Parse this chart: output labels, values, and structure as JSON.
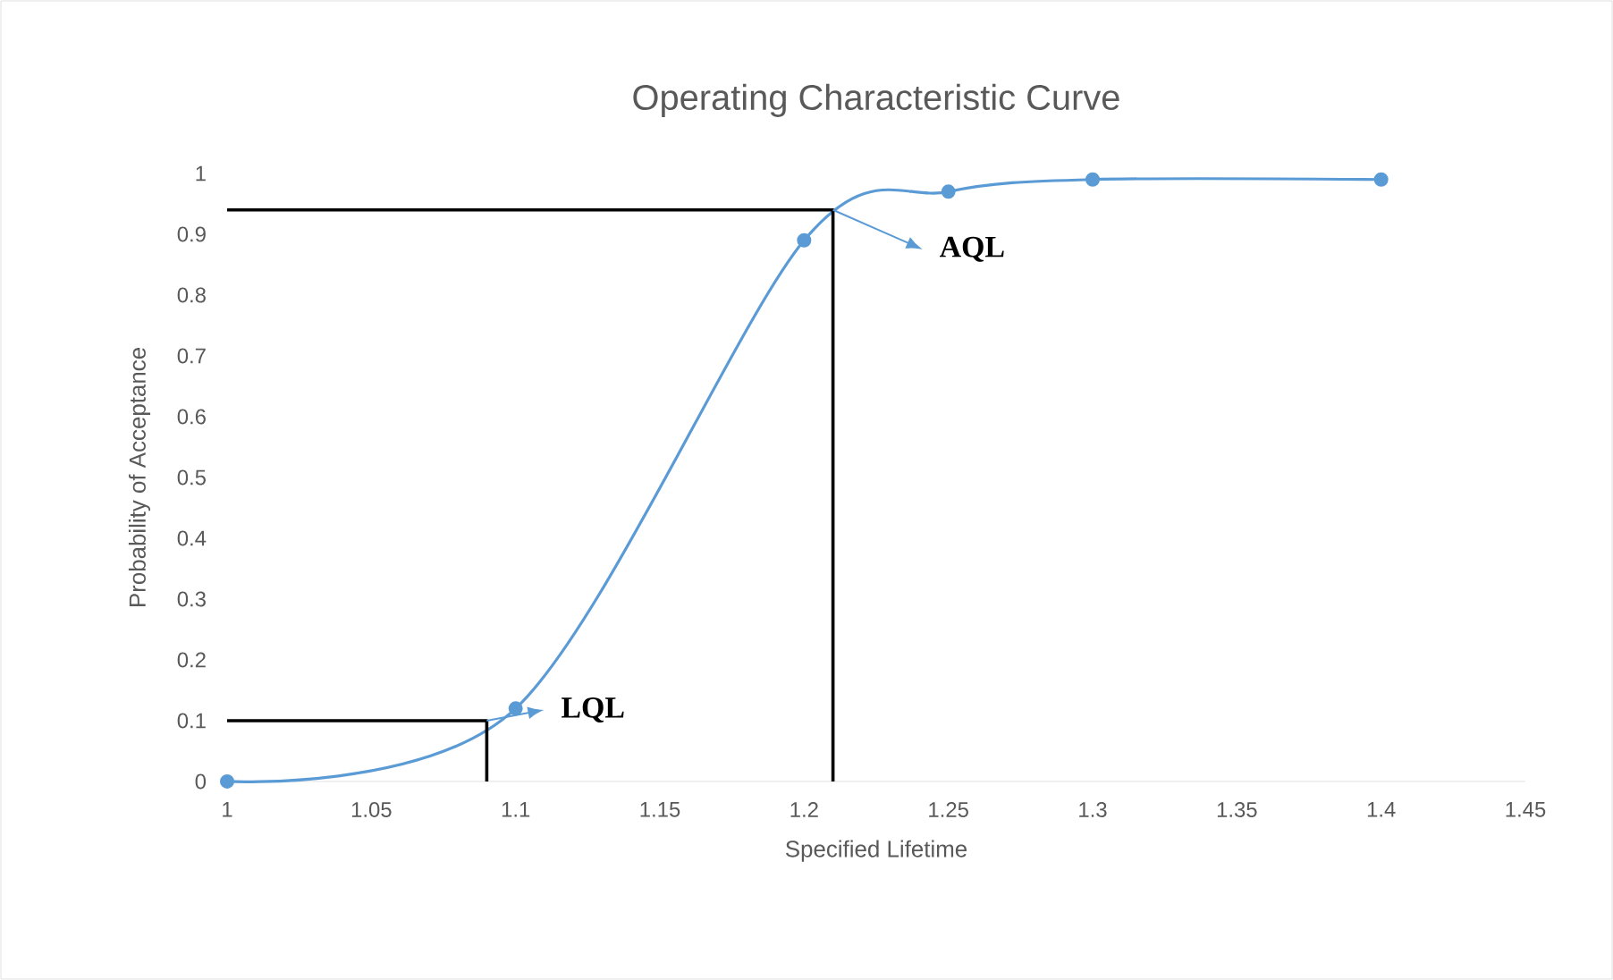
{
  "chart_data": {
    "type": "line",
    "title": "Operating Characteristic Curve",
    "xlabel": "Specified Lifetime",
    "ylabel": "Probability of Acceptance",
    "xlim": [
      1,
      1.45
    ],
    "xticks": [
      1,
      1.05,
      1.1,
      1.15,
      1.2,
      1.25,
      1.3,
      1.35,
      1.4,
      1.45
    ],
    "ylim": [
      0,
      1
    ],
    "yticks": [
      0,
      0.1,
      0.2,
      0.3,
      0.4,
      0.5,
      0.6,
      0.7,
      0.8,
      0.9,
      1
    ],
    "grid": false,
    "marker": "circle",
    "line_style": "solid",
    "series": [
      {
        "color": "#5b9bd5",
        "x": [
          1,
          1.1,
          1.2,
          1.25,
          1.3,
          1.4
        ],
        "values": [
          0,
          0.12,
          0.89,
          0.97,
          0.99,
          0.99
        ]
      },
      {
        "color": "#000000",
        "marker": "none",
        "x": [
          1,
          1.21,
          1.21
        ],
        "values": [
          0.94,
          0.94,
          0
        ]
      },
      {
        "color": "#000000",
        "marker": "none",
        "x": [
          1,
          1.09,
          1.09
        ],
        "values": [
          0.1,
          0.1,
          0
        ]
      }
    ],
    "annotations": [
      {
        "text": "AQL",
        "x": 1.21,
        "y": 0.94
      },
      {
        "text": "LQL",
        "x": 1.09,
        "y": 0.1
      }
    ]
  }
}
